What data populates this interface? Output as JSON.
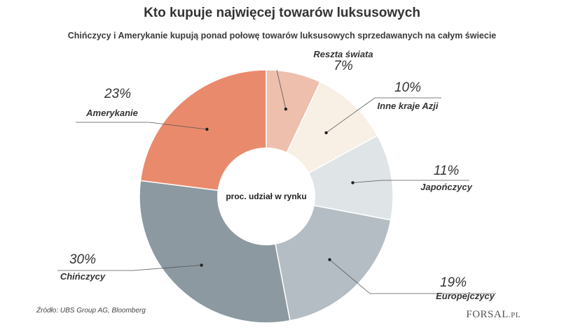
{
  "chart_data": {
    "type": "pie",
    "title": "Kto kupuje najwięcej towarów luksusowych",
    "subtitle": "Chińczycy i Amerykanie kupują ponad połowę towarów luksusowych sprzedawanych na całym świecie",
    "center_label": "proc. udział w rynku",
    "slices": [
      {
        "label": "Reszta świata",
        "value": 7,
        "value_label": "7%",
        "color": "#eebfac"
      },
      {
        "label": "Inne kraje Azji",
        "value": 10,
        "value_label": "10%",
        "color": "#f8efe5"
      },
      {
        "label": "Japończycy",
        "value": 11,
        "value_label": "11%",
        "color": "#dfe4e7"
      },
      {
        "label": "Europejczycy",
        "value": 19,
        "value_label": "19%",
        "color": "#b4bdc3"
      },
      {
        "label": "Chińczycy",
        "value": 30,
        "value_label": "30%",
        "color": "#8c99a0"
      },
      {
        "label": "Amerykanie",
        "value": 23,
        "value_label": "23%",
        "color": "#ea8a6c"
      }
    ]
  },
  "source": "Źródło: UBS Group AG, Bloomberg",
  "logo": {
    "main": "FORSAL",
    "suffix": ".PL"
  }
}
